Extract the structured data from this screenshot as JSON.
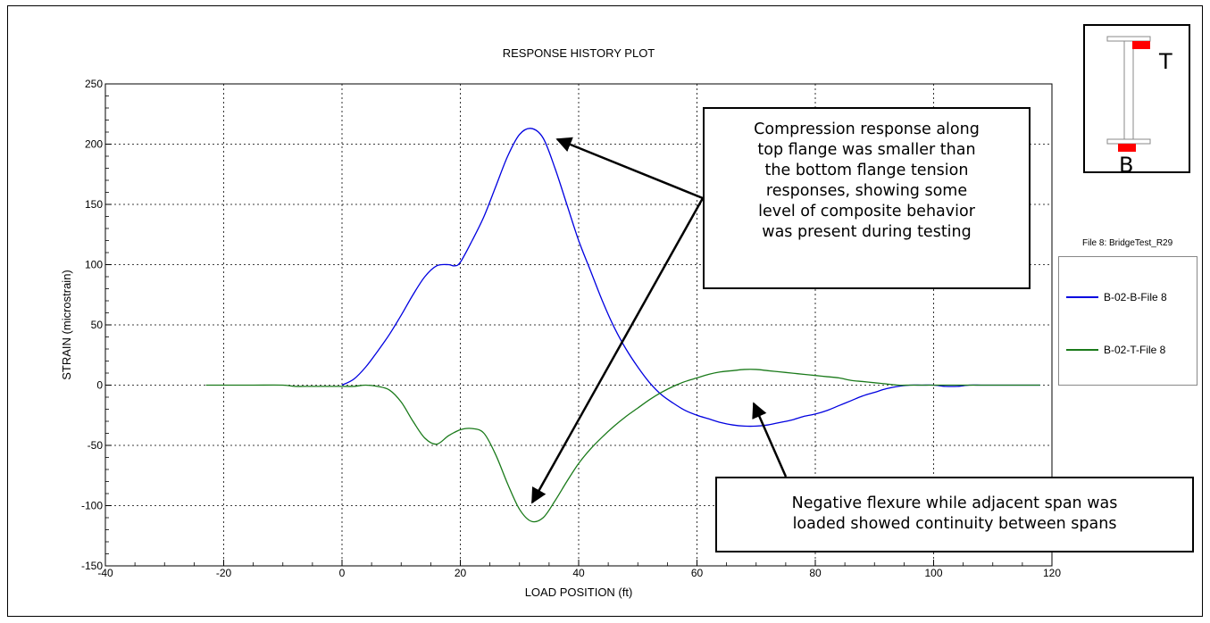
{
  "chart_data": {
    "type": "line",
    "title": "RESPONSE HISTORY PLOT",
    "xlabel": "LOAD POSITION (ft)",
    "ylabel": "STRAIN (microstrain)",
    "xlim": [
      -40,
      120
    ],
    "ylim": [
      -150,
      250
    ],
    "xticks": [
      -40,
      -20,
      0,
      20,
      40,
      60,
      80,
      100,
      120
    ],
    "yticks": [
      -150,
      -100,
      -50,
      0,
      50,
      100,
      150,
      200,
      250
    ],
    "grid": true,
    "legend_title": "File 8: BridgeTest_R29",
    "legend_position": "right",
    "series": [
      {
        "name": "B-02-B-File 8",
        "color": "#0000e0",
        "x": [
          0,
          2,
          4,
          6,
          8,
          10,
          12,
          14,
          16,
          18,
          19,
          20,
          22,
          24,
          26,
          28,
          30,
          32,
          34,
          36,
          38,
          40,
          42,
          44,
          46,
          48,
          50,
          52,
          54,
          56,
          58,
          60,
          62,
          64,
          66,
          68,
          70,
          72,
          74,
          76,
          78,
          80,
          82,
          84,
          86,
          88,
          90,
          92,
          94,
          96,
          98,
          100,
          102,
          104,
          106,
          108,
          110,
          112,
          114,
          116,
          118
        ],
        "y": [
          0,
          5,
          15,
          28,
          42,
          58,
          75,
          90,
          99,
          100,
          99,
          102,
          120,
          140,
          165,
          190,
          208,
          213,
          205,
          180,
          150,
          120,
          95,
          70,
          48,
          30,
          15,
          2,
          -8,
          -15,
          -21,
          -25,
          -28,
          -31,
          -33,
          -34,
          -34,
          -33,
          -31,
          -29,
          -26,
          -24,
          -21,
          -17,
          -13,
          -9,
          -6,
          -3,
          -1,
          0,
          0,
          0,
          -1,
          -1,
          0,
          0,
          0,
          0,
          0,
          0,
          0
        ]
      },
      {
        "name": "B-02-T-File 8",
        "color": "#1a7a1a",
        "x": [
          -23,
          -20,
          -15,
          -10,
          -8,
          -5,
          0,
          2,
          4,
          6,
          8,
          10,
          12,
          14,
          16,
          18,
          20,
          22,
          24,
          26,
          28,
          30,
          32,
          34,
          36,
          38,
          40,
          42,
          44,
          46,
          48,
          50,
          52,
          54,
          56,
          58,
          60,
          62,
          64,
          66,
          68,
          70,
          72,
          74,
          76,
          78,
          80,
          82,
          84,
          86,
          88,
          90,
          92,
          94,
          96,
          98,
          100,
          102,
          104,
          106,
          108,
          110,
          112,
          114,
          116,
          118
        ],
        "y": [
          0,
          0,
          0,
          0,
          -1,
          -1,
          -1,
          -1,
          0,
          -1,
          -4,
          -14,
          -30,
          -44,
          -49,
          -42,
          -37,
          -36,
          -40,
          -58,
          -82,
          -103,
          -113,
          -110,
          -96,
          -80,
          -65,
          -53,
          -43,
          -34,
          -26,
          -19,
          -12,
          -6,
          -1,
          3,
          6,
          9,
          11,
          12,
          13,
          13,
          12,
          11,
          10,
          9,
          8,
          7,
          6,
          4,
          3,
          2,
          1,
          0,
          0,
          0,
          0,
          0,
          0,
          0,
          0,
          0,
          0,
          0,
          0,
          0
        ]
      }
    ]
  },
  "callouts": {
    "top_lines": [
      "Compression response along",
      "top flange was smaller than",
      "the bottom flange tension",
      "responses, showing some",
      "level of composite behavior",
      "was present during testing"
    ],
    "bottom_lines": [
      "Negative flexure while adjacent span was",
      "loaded showed continuity between spans"
    ]
  },
  "beam_diagram": {
    "top_label": "T",
    "bottom_label": "B",
    "marker_color": "#ff0000"
  }
}
